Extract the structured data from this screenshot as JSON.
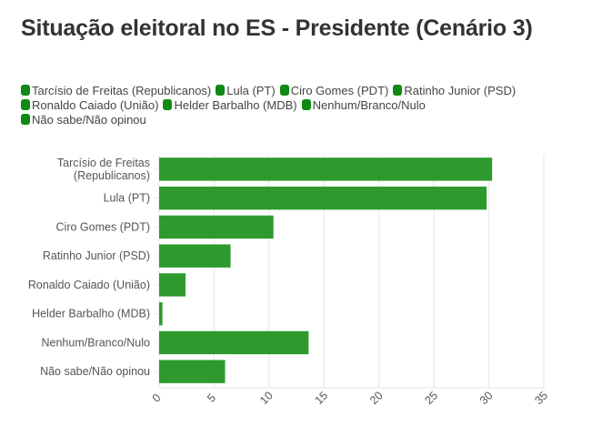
{
  "chart_data": {
    "type": "bar",
    "orientation": "horizontal",
    "title": "Situação eleitoral no ES - Presidente (Cenário 3)",
    "categories": [
      "Tarcísio de Freitas (Republicanos)",
      "Lula (PT)",
      "Ciro Gomes (PDT)",
      "Ratinho Junior (PSD)",
      "Ronaldo Caiado (União)",
      "Helder Barbalho (MDB)",
      "Nenhum/Branco/Nulo",
      "Não sabe/Não opinou"
    ],
    "category_lines": [
      [
        "Tarcísio de Freitas",
        "(Republicanos)"
      ],
      [
        "Lula (PT)"
      ],
      [
        "Ciro Gomes (PDT)"
      ],
      [
        "Ratinho Junior (PSD)"
      ],
      [
        "Ronaldo Caiado (União)"
      ],
      [
        "Helder Barbalho (MDB)"
      ],
      [
        "Nenhum/Branco/Nulo"
      ],
      [
        "Não sabe/Não opinou"
      ]
    ],
    "values": [
      30.3,
      29.8,
      10.4,
      6.5,
      2.4,
      0.3,
      13.6,
      6.0
    ],
    "xlabel": "",
    "ylabel": "",
    "xlim": [
      0,
      35
    ],
    "xticks": [
      0,
      5,
      10,
      15,
      20,
      25,
      30,
      35
    ],
    "xtick_rotation": "-45deg",
    "grid": true,
    "legend": {
      "placement": "top-left",
      "entries": [
        "Tarcísio de Freitas (Republicanos)",
        "Lula (PT)",
        "Ciro Gomes (PDT)",
        "Ratinho Junior (PSD)",
        "Ronaldo Caiado (União)",
        "Helder Barbalho (MDB)",
        "Nenhum/Branco/Nulo",
        "Não sabe/Não opinou"
      ]
    },
    "colors": {
      "bar": "#2e9a2e",
      "legend_swatch": "#0f8a12",
      "grid": "#e6e6e6",
      "text": "#555555",
      "title": "#333333"
    }
  }
}
